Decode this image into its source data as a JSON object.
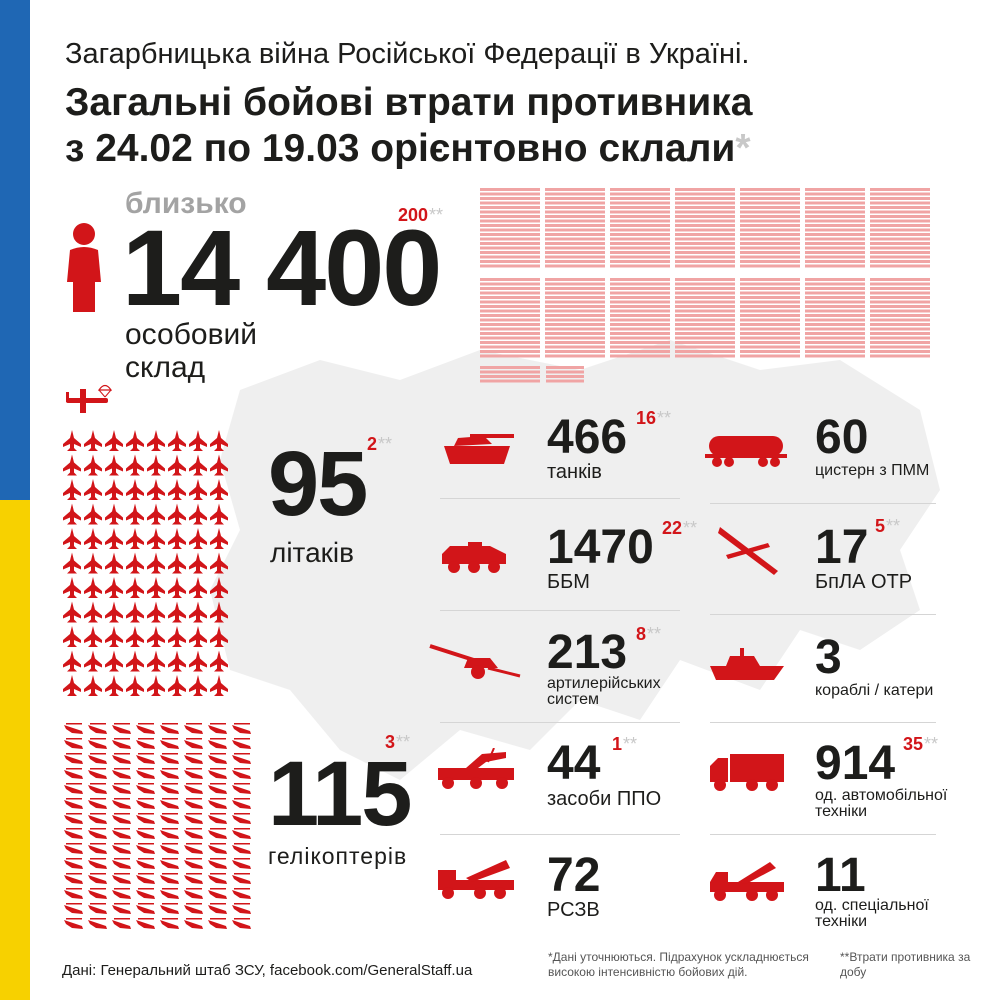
{
  "header": {
    "subtitle": "Загарбницька війна Російської Федерації в Україні.",
    "title_line1": "Загальні бойові втрати противника",
    "title_line2": "з 24.02 по 19.03 орієнтовно склали",
    "title_asterisk": "*"
  },
  "personnel": {
    "prefix": "близько",
    "value": "14 400",
    "delta": "200",
    "delta_stars": "**",
    "label_line1": "особовий",
    "label_line2": "склад",
    "icon": "soldier-icon"
  },
  "planes": {
    "value": "95",
    "delta": "2",
    "delta_stars": "**",
    "label": "літаків",
    "icon": "fighter-jet-icon"
  },
  "helicopters": {
    "value": "115",
    "delta": "3",
    "delta_stars": "**",
    "label": "гелікоптерів",
    "icon": "helicopter-icon"
  },
  "items_left": [
    {
      "value": "466",
      "delta": "16",
      "delta_stars": "**",
      "label": "танків",
      "icon": "tank-icon"
    },
    {
      "value": "1470",
      "delta": "22",
      "delta_stars": "**",
      "label": "ББМ",
      "icon": "armored-vehicle-icon"
    },
    {
      "value": "213",
      "delta": "8",
      "delta_stars": "**",
      "label_line1": "артилерійських",
      "label_line2": "систем",
      "icon": "artillery-icon"
    },
    {
      "value": "44",
      "delta": "1",
      "delta_stars": "**",
      "label": "засоби ППО",
      "icon": "air-defense-icon"
    },
    {
      "value": "72",
      "label": "РСЗВ",
      "icon": "rocket-launcher-icon"
    }
  ],
  "items_right": [
    {
      "value": "60",
      "label": "цистерн з ПММ",
      "icon": "fuel-tank-icon"
    },
    {
      "value": "17",
      "delta": "5",
      "delta_stars": "**",
      "label": "БпЛА ОТР",
      "icon": "drone-icon"
    },
    {
      "value": "3",
      "label": "кораблі / катери",
      "icon": "ship-icon"
    },
    {
      "value": "914",
      "delta": "35",
      "delta_stars": "**",
      "label_line1": "од. автомобільної",
      "label_line2": "техніки",
      "icon": "truck-icon"
    },
    {
      "value": "11",
      "label_line1": "од. спеціальної",
      "label_line2": "техніки",
      "icon": "special-vehicle-icon"
    }
  ],
  "footer": {
    "source": "Дані: Генеральний штаб ЗСУ, facebook.com/GeneralStaff.ua",
    "note1": "*Дані уточнюються. Підрахунок ускладнюється високою інтенсивністю бойових дій.",
    "note2": "**Втрати противника за добу"
  },
  "colors": {
    "accent": "#d21519",
    "light_red": "#f0a4a4",
    "flag_blue": "#1f67b4",
    "flag_yellow": "#f7d100",
    "map": "#eeeeee"
  }
}
